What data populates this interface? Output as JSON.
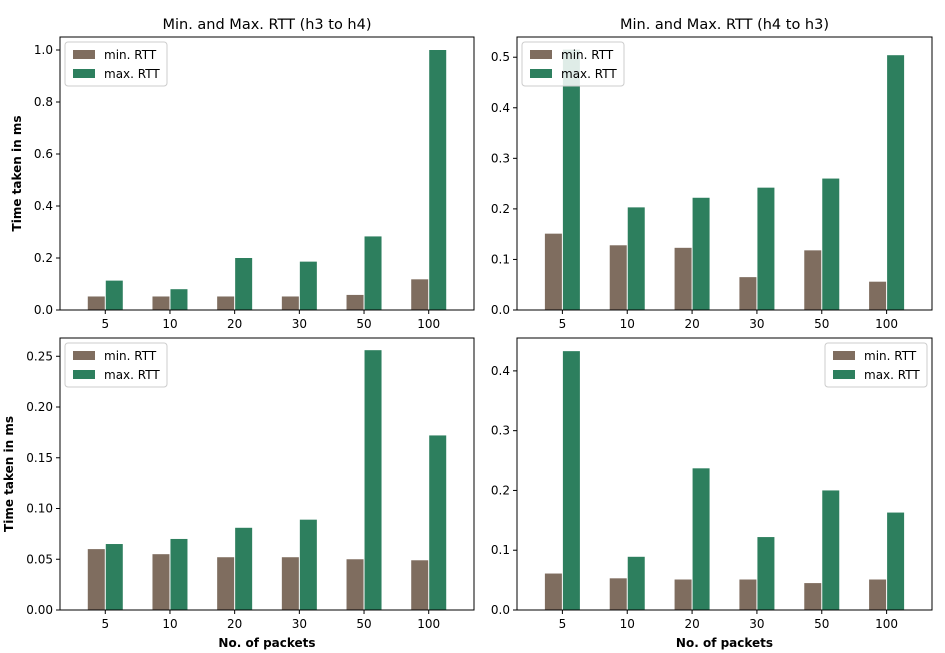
{
  "colors": {
    "min": "#7f6d5f",
    "max": "#2d7f5e"
  },
  "chart_data": [
    {
      "type": "bar",
      "title": "Min. and Max. RTT (h3 to h4)",
      "xlabel": "",
      "ylabel": "Time taken in ms",
      "categories": [
        "5",
        "10",
        "20",
        "30",
        "50",
        "100"
      ],
      "series": [
        {
          "name": "min. RTT",
          "values": [
            0.052,
            0.052,
            0.052,
            0.052,
            0.058,
            0.118
          ]
        },
        {
          "name": "max. RTT",
          "values": [
            0.113,
            0.08,
            0.2,
            0.186,
            0.283,
            1.0
          ]
        }
      ],
      "ylim": [
        0,
        1.05
      ],
      "yticks": [
        "0.0",
        "0.2",
        "0.4",
        "0.6",
        "0.8",
        "1.0"
      ],
      "legend": "top-left"
    },
    {
      "type": "bar",
      "title": "Min. and Max. RTT (h4 to h3)",
      "xlabel": "",
      "ylabel": "",
      "categories": [
        "5",
        "10",
        "20",
        "30",
        "50",
        "100"
      ],
      "series": [
        {
          "name": "min. RTT",
          "values": [
            0.151,
            0.128,
            0.123,
            0.065,
            0.118,
            0.056
          ]
        },
        {
          "name": "max. RTT",
          "values": [
            0.515,
            0.203,
            0.222,
            0.242,
            0.26,
            0.504
          ]
        }
      ],
      "ylim": [
        0,
        0.54
      ],
      "yticks": [
        "0.0",
        "0.1",
        "0.2",
        "0.3",
        "0.4",
        "0.5"
      ],
      "legend": "top-left"
    },
    {
      "type": "bar",
      "title": "",
      "xlabel": "No. of packets",
      "ylabel": "Time taken in ms",
      "categories": [
        "5",
        "10",
        "20",
        "30",
        "50",
        "100"
      ],
      "series": [
        {
          "name": "min. RTT",
          "values": [
            0.06,
            0.055,
            0.052,
            0.052,
            0.05,
            0.049
          ]
        },
        {
          "name": "max. RTT",
          "values": [
            0.065,
            0.07,
            0.081,
            0.089,
            0.256,
            0.172
          ]
        }
      ],
      "ylim": [
        0,
        0.268
      ],
      "yticks": [
        "0.00",
        "0.05",
        "0.10",
        "0.15",
        "0.20",
        "0.25"
      ],
      "legend": "top-left"
    },
    {
      "type": "bar",
      "title": "",
      "xlabel": "No. of packets",
      "ylabel": "",
      "categories": [
        "5",
        "10",
        "20",
        "30",
        "50",
        "100"
      ],
      "series": [
        {
          "name": "min. RTT",
          "values": [
            0.061,
            0.053,
            0.051,
            0.051,
            0.045,
            0.051
          ]
        },
        {
          "name": "max. RTT",
          "values": [
            0.433,
            0.089,
            0.237,
            0.122,
            0.2,
            0.163
          ]
        }
      ],
      "ylim": [
        0,
        0.455
      ],
      "yticks": [
        "0.0",
        "0.1",
        "0.2",
        "0.3",
        "0.4"
      ],
      "legend": "top-right"
    }
  ]
}
